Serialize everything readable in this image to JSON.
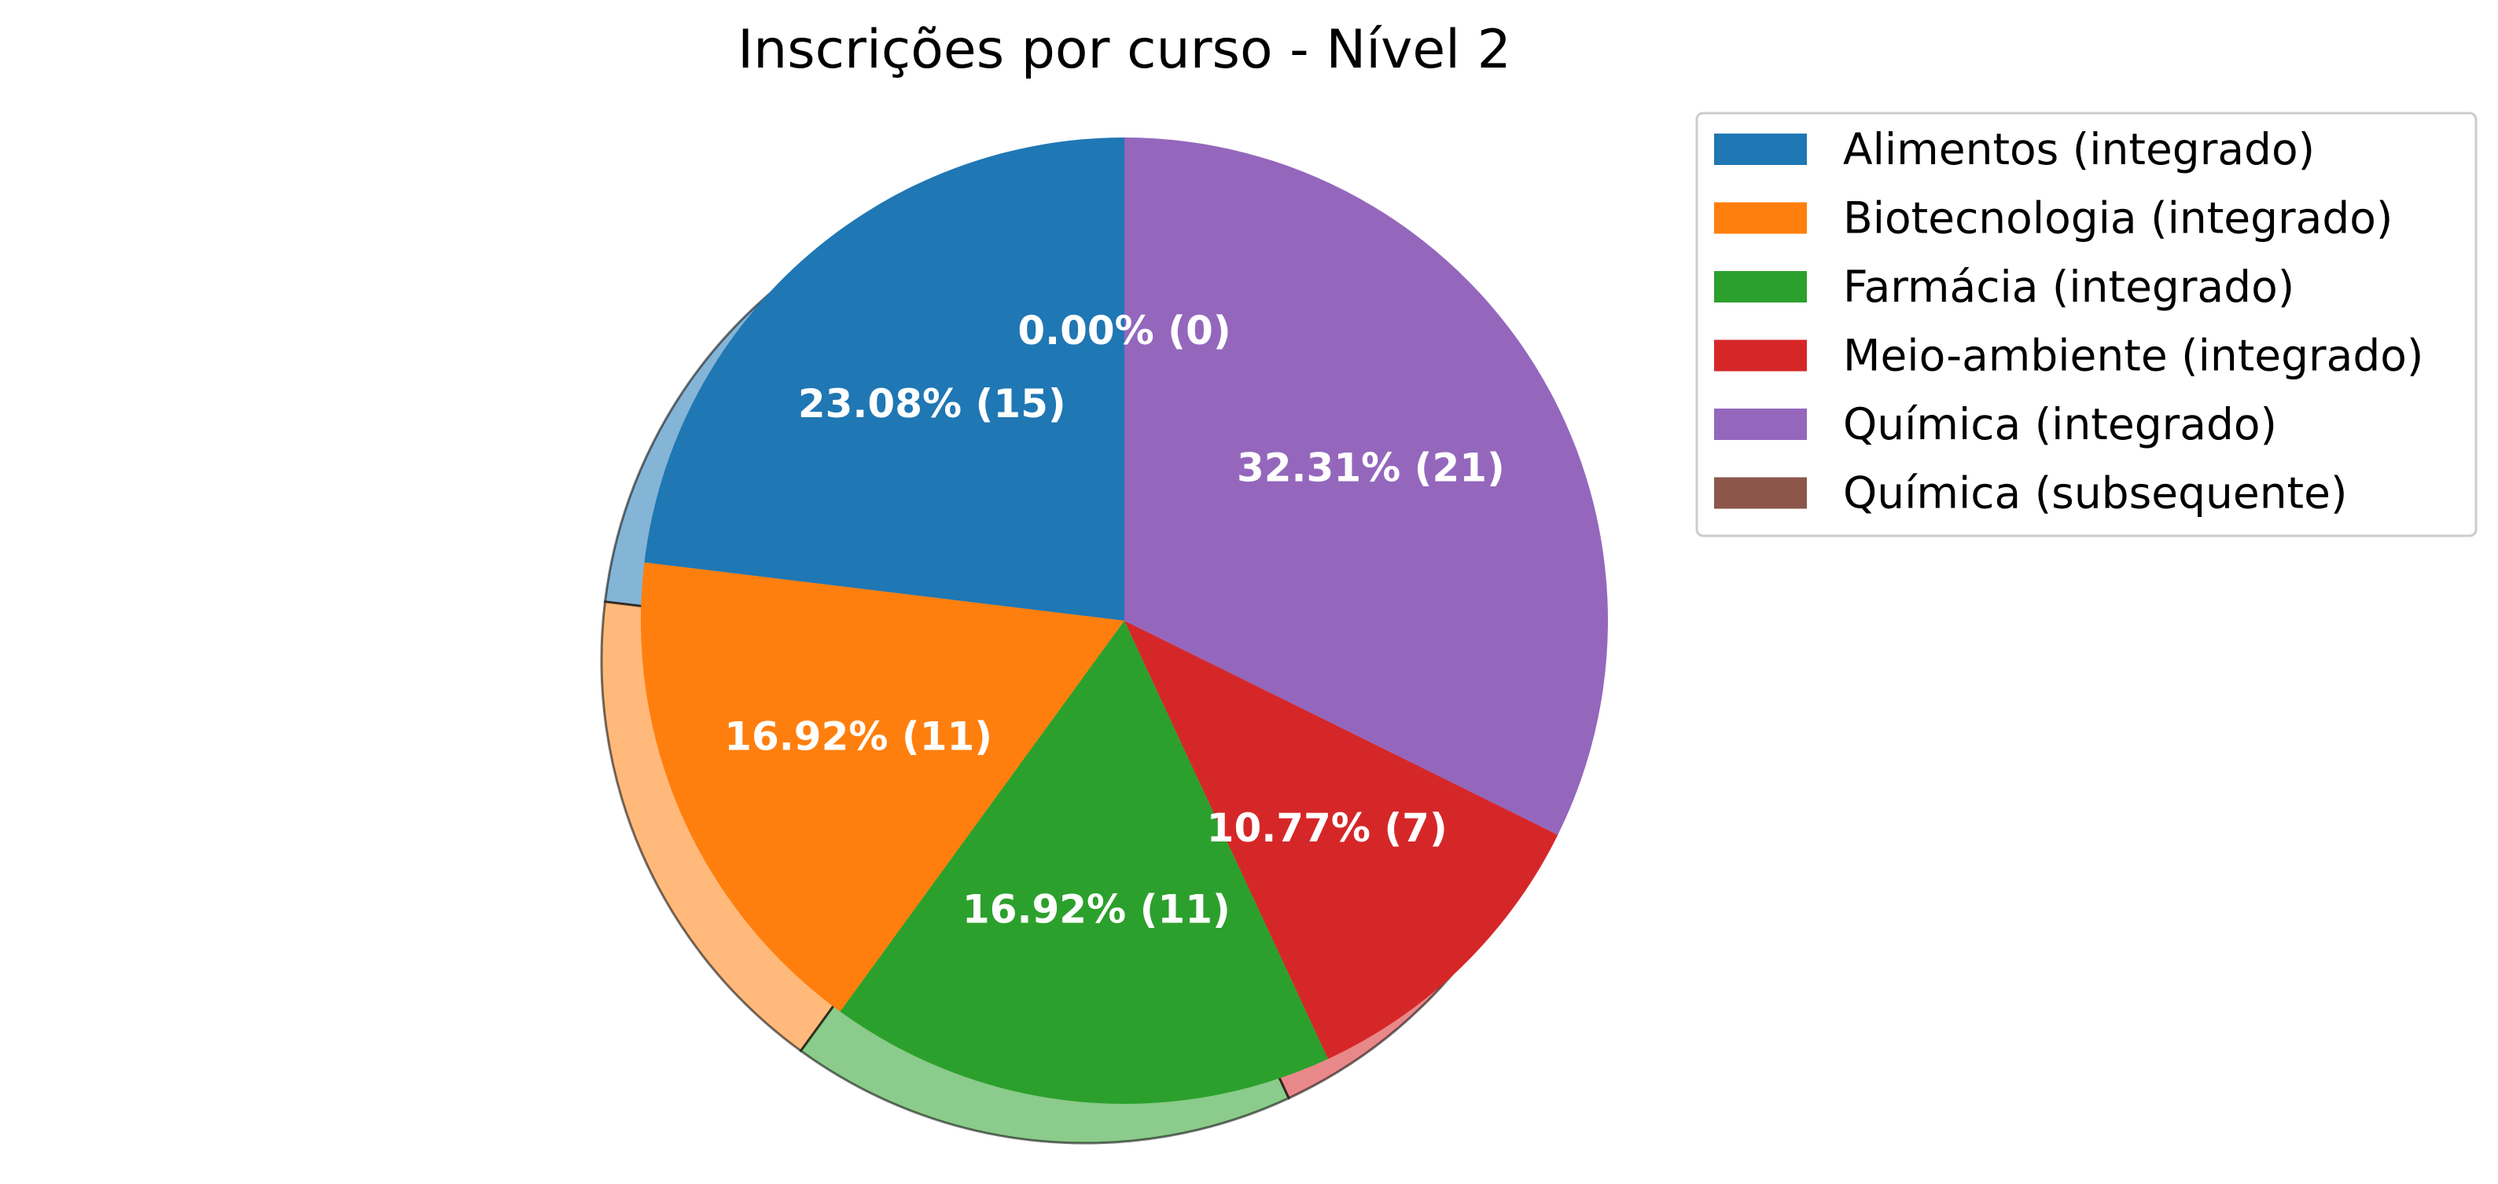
{
  "chart_data": {
    "type": "pie",
    "title": "Inscrições por curso - Nível 2",
    "legend_position": "top-right",
    "shadow": true,
    "start_angle_deg": 90,
    "direction": "counterclockwise",
    "slices": [
      {
        "label": "Alimentos (integrado)",
        "value": 15,
        "percent_label": "23.08%  (15)",
        "color": "#1f77b4"
      },
      {
        "label": "Biotecnologia (integrado)",
        "value": 11,
        "percent_label": "16.92%  (11)",
        "color": "#ff7f0e"
      },
      {
        "label": "Farmácia (integrado)",
        "value": 11,
        "percent_label": "16.92%  (11)",
        "color": "#2ca02c"
      },
      {
        "label": "Meio-ambiente (integrado)",
        "value": 7,
        "percent_label": "10.77%  (7)",
        "color": "#d62728"
      },
      {
        "label": "Química (integrado)",
        "value": 21,
        "percent_label": "32.31%  (21)",
        "color": "#9467bd"
      },
      {
        "label": "Química (subsequente)",
        "value": 0,
        "percent_label": "0.00%  (0)",
        "color": "#8c564b"
      }
    ]
  }
}
